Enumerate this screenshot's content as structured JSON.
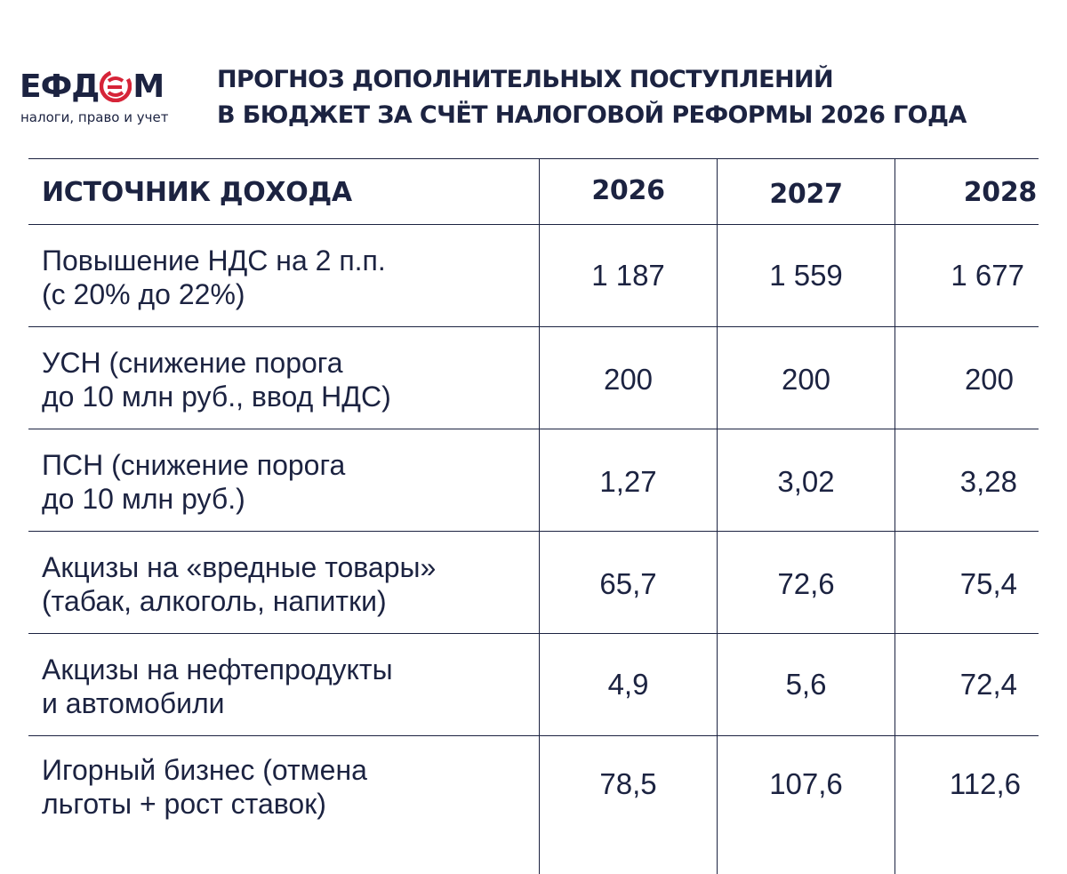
{
  "logo": {
    "word_left": "ЕФД",
    "word_right": "М",
    "mark_icon": "efd-logo-swirl-icon",
    "tagline": "налоги, право и учет",
    "accent_color": "#d62438",
    "text_color": "#1c2341"
  },
  "title": {
    "line1": "ПРОГНОЗ ДОПОЛНИТЕЛЬНЫХ ПОСТУПЛЕНИЙ",
    "line2": "В БЮДЖЕТ ЗА СЧЁТ НАЛОГОВОЙ РЕФОРМЫ 2026 ГОДА"
  },
  "chart_data": {
    "type": "table",
    "columns": [
      "ИСТОЧНИК ДОХОДА",
      "2026",
      "2027",
      "2028"
    ],
    "rows": [
      {
        "label": [
          "Повышение НДС на 2 п.п.",
          "(с 20% до 22%)"
        ],
        "values": [
          "1 187",
          "1 559",
          "1 677"
        ]
      },
      {
        "label": [
          "УСН (снижение порога",
          "до 10 млн руб., ввод НДС)"
        ],
        "values": [
          "200",
          "200",
          "200"
        ]
      },
      {
        "label": [
          "ПСН (снижение порога",
          "до 10 млн руб.)"
        ],
        "values": [
          "1,27",
          "3,02",
          "3,28"
        ]
      },
      {
        "label": [
          "Акцизы на «вредные товары»",
          "(табак, алкоголь, напитки)"
        ],
        "values": [
          "65,7",
          "72,6",
          "75,4"
        ]
      },
      {
        "label": [
          "Акцизы на нефтепродукты",
          "и автомобили"
        ],
        "values": [
          "4,9",
          "5,6",
          "72,4"
        ]
      },
      {
        "label": [
          "Игорный бизнес (отмена",
          "льготы + рост ставок)"
        ],
        "values": [
          "78,5",
          "107,6",
          "112,6"
        ]
      }
    ]
  }
}
